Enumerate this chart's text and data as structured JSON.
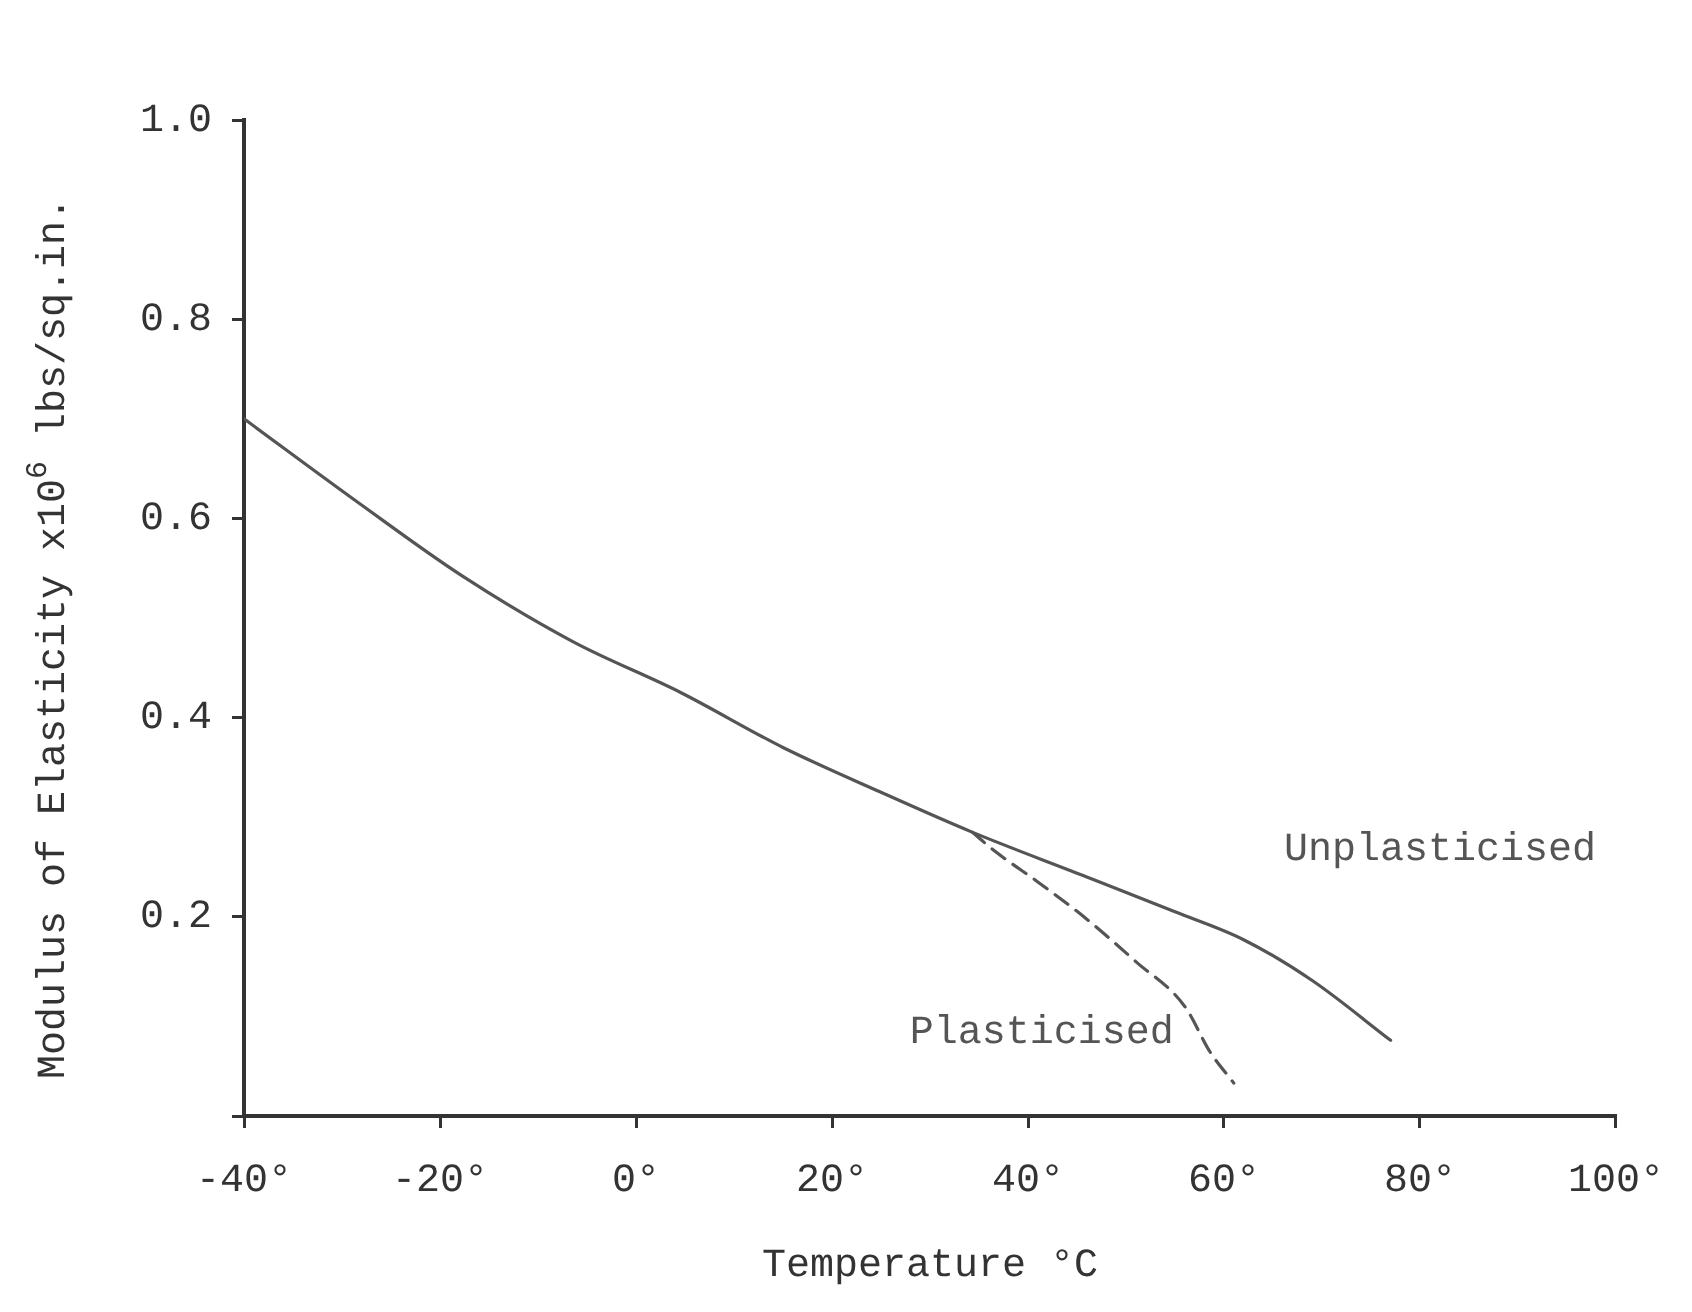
{
  "chart_data": {
    "type": "line",
    "xlabel": "Temperature °C",
    "ylabel": "Modulus of Elasticity x10$^{6}$ lbs/sq.in.",
    "xlim": [
      -40,
      100
    ],
    "ylim": [
      0,
      1.0
    ],
    "xticks": [
      {
        "value": -40,
        "label": "-40°"
      },
      {
        "value": -20,
        "label": "-20°"
      },
      {
        "value": 0,
        "label": "0°"
      },
      {
        "value": 20,
        "label": "20°"
      },
      {
        "value": 40,
        "label": "40°"
      },
      {
        "value": 60,
        "label": "60°"
      },
      {
        "value": 80,
        "label": "80°"
      },
      {
        "value": 100,
        "label": "100°"
      }
    ],
    "yticks": [
      {
        "value": 0,
        "label": null
      },
      {
        "value": 0.2,
        "label": "0.2"
      },
      {
        "value": 0.4,
        "label": "0.4"
      },
      {
        "value": 0.6,
        "label": "0.6"
      },
      {
        "value": 0.8,
        "label": "0.8"
      },
      {
        "value": 1.0,
        "label": "1.0"
      }
    ],
    "grid": false,
    "marker": "none",
    "series": [
      {
        "name": "Unplasticised",
        "color": "#555555",
        "line_style": "solid",
        "x": [
          -40,
          -28.5,
          -17.7,
          -6.4,
          4.6,
          15,
          25,
          34.3,
          46,
          55,
          62,
          69,
          77
        ],
        "values": [
          0.7,
          0.617,
          0.542,
          0.476,
          0.425,
          0.37,
          0.325,
          0.285,
          0.24,
          0.205,
          0.177,
          0.136,
          0.076
        ]
      },
      {
        "name": "Plasticised",
        "color": "#555555",
        "line_style": "dashed",
        "x": [
          34.3,
          36.6,
          41,
          45.7,
          51,
          56,
          58.6,
          61
        ],
        "values": [
          0.285,
          0.266,
          0.235,
          0.2,
          0.155,
          0.11,
          0.064,
          0.033
        ]
      }
    ]
  }
}
